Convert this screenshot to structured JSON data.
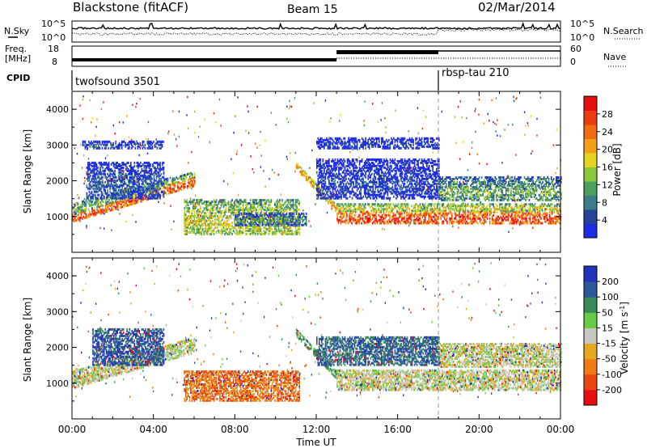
{
  "header": {
    "station": "Blackstone (fitACF)",
    "beam": "Beam 15",
    "date": "02/Mar/2014"
  },
  "strip_labels": {
    "nsky": "N.Sky",
    "nsky_ticks": [
      "10^5",
      "10^0"
    ],
    "nsearch": "N.Search",
    "freq_line1": "Freq.",
    "freq_line2": "[MHz]",
    "freq_ticks": [
      "18",
      "8"
    ],
    "nave": "Nave",
    "nave_ticks": [
      "60",
      "0"
    ],
    "cpid": "CPID"
  },
  "cpid": [
    {
      "name": "twofsound 3501",
      "start_hour": 0
    },
    {
      "name": "rbsp-tau 210",
      "start_hour": 18
    }
  ],
  "chart_data": [
    {
      "type": "heatmap",
      "title": "Power",
      "xlabel": "",
      "ylabel": "Slant Range [km]",
      "xlim": [
        0,
        24
      ],
      "ylim": [
        0,
        4500
      ],
      "x_ticks": [],
      "y_ticks": [
        "1000",
        "2000",
        "3000",
        "4000"
      ],
      "colorbar": {
        "label": "Power [dB]",
        "ticks": [
          "4",
          "8",
          "12",
          "16",
          "20",
          "24",
          "28"
        ],
        "colors": [
          "#1e2ce6",
          "#24449a",
          "#3a7c8a",
          "#4aa05c",
          "#8cc83c",
          "#e6d41e",
          "#f5a014",
          "#f26a12",
          "#eb3c0f",
          "#e60f0f"
        ]
      },
      "bands": [
        {
          "t0": 0.0,
          "t1": 6.0,
          "r0": 850,
          "r1": 1050,
          "r0_end": 1850,
          "r1_end": 2100,
          "level": 0.85
        },
        {
          "t0": 0.0,
          "t1": 6.0,
          "r0": 1050,
          "r1": 1350,
          "r0_end": 2100,
          "r1_end": 2250,
          "level": 0.45
        },
        {
          "t0": 0.7,
          "t1": 4.5,
          "r0": 1500,
          "r1": 2500,
          "level": 0.2
        },
        {
          "t0": 0.5,
          "t1": 4.5,
          "r0": 2900,
          "r1": 3100,
          "level": 0.15
        },
        {
          "t0": 5.5,
          "t1": 11.2,
          "r0": 500,
          "r1": 1450,
          "level": 0.55
        },
        {
          "t0": 8.0,
          "t1": 11.5,
          "r0": 750,
          "r1": 1100,
          "level": 0.3
        },
        {
          "t0": 11.0,
          "t1": 13.0,
          "r0": 2300,
          "r1": 2500,
          "r0_end": 1100,
          "r1_end": 1300,
          "level": 0.7
        },
        {
          "t0": 13.0,
          "t1": 24.0,
          "r0": 800,
          "r1": 1150,
          "level": 0.88
        },
        {
          "t0": 13.0,
          "t1": 24.0,
          "r0": 1150,
          "r1": 1350,
          "level": 0.55
        },
        {
          "t0": 18.0,
          "t1": 24.0,
          "r0": 1450,
          "r1": 2100,
          "level": 0.4
        },
        {
          "t0": 12.0,
          "t1": 18.0,
          "r0": 1500,
          "r1": 2600,
          "level": 0.12
        },
        {
          "t0": 12.0,
          "t1": 18.0,
          "r0": 2900,
          "r1": 3200,
          "level": 0.1
        }
      ]
    },
    {
      "type": "heatmap",
      "title": "Velocity",
      "xlabel": "Time UT",
      "ylabel": "Slant Range [km]",
      "xlim": [
        0,
        24
      ],
      "ylim": [
        0,
        4500
      ],
      "x_ticks": [
        "00:00",
        "04:00",
        "08:00",
        "12:00",
        "16:00",
        "20:00",
        "00:00"
      ],
      "y_ticks": [
        "1000",
        "2000",
        "3000",
        "4000"
      ],
      "colorbar": {
        "label": "Velocity [m s^-1]",
        "ticks": [
          "200",
          "100",
          "50",
          "15",
          "-15",
          "-50",
          "-100",
          "-200"
        ],
        "colors": [
          "#2233bb",
          "#2a5a9a",
          "#3a8a5a",
          "#66cc44",
          "#c8c8c0",
          "#e6a81e",
          "#f07a14",
          "#eb4610",
          "#e60f0f"
        ]
      },
      "bands": [
        {
          "t0": 0.0,
          "t1": 6.0,
          "r0": 850,
          "r1": 1350,
          "r0_end": 1850,
          "r1_end": 2250,
          "level": 0.5
        },
        {
          "t0": 1.0,
          "t1": 4.5,
          "r0": 1500,
          "r1": 2500,
          "level": 0.15
        },
        {
          "t0": 5.5,
          "t1": 11.2,
          "r0": 500,
          "r1": 1350,
          "level": 0.75
        },
        {
          "t0": 11.0,
          "t1": 13.0,
          "r0": 2300,
          "r1": 2500,
          "r0_end": 1100,
          "r1_end": 1300,
          "level": 0.35
        },
        {
          "t0": 13.0,
          "t1": 24.0,
          "r0": 800,
          "r1": 1350,
          "level": 0.5
        },
        {
          "t0": 18.0,
          "t1": 24.0,
          "r0": 1450,
          "r1": 2100,
          "level": 0.5
        },
        {
          "t0": 12.0,
          "t1": 18.0,
          "r0": 1500,
          "r1": 2300,
          "level": 0.2
        }
      ]
    }
  ]
}
